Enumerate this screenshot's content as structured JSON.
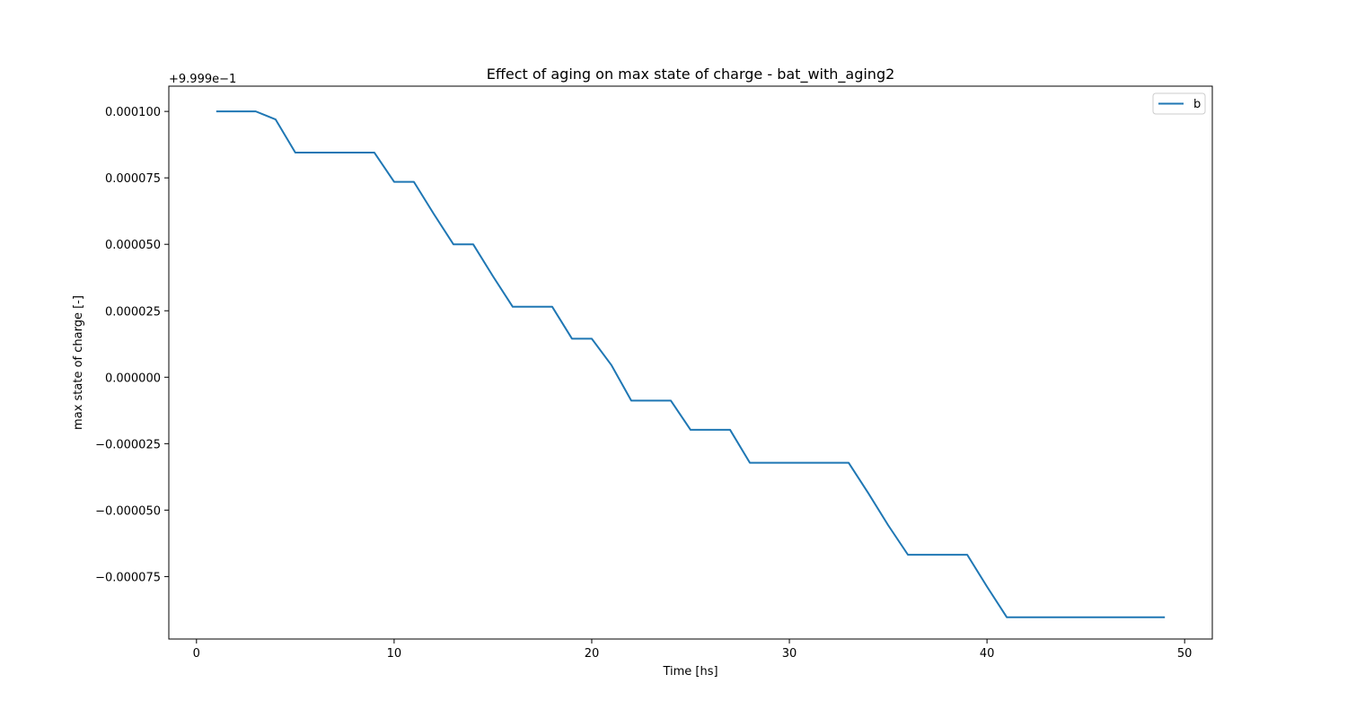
{
  "chart_data": {
    "type": "line",
    "title": "Effect of aging on max state of charge - bat_with_aging2",
    "xlabel": "Time [hs]",
    "ylabel": "max state of charge [-]",
    "offset_label": "+9.999e−1",
    "xlim": [
      -1.4,
      51.4
    ],
    "ylim": [
      -9.85e-05,
      0.0001095
    ],
    "x_ticks": [
      0,
      10,
      20,
      30,
      40,
      50
    ],
    "x_tick_labels": [
      "0",
      "10",
      "20",
      "30",
      "40",
      "50"
    ],
    "y_ticks": [
      0.0001,
      7.5e-05,
      5e-05,
      2.5e-05,
      0.0,
      -2.5e-05,
      -5e-05,
      -7.5e-05
    ],
    "y_tick_labels": [
      "0.000100",
      "0.000075",
      "0.000050",
      "0.000025",
      "0.000000",
      "−0.000025",
      "−0.000050",
      "−0.000075"
    ],
    "grid": false,
    "legend_position": "top-right",
    "series": [
      {
        "name": "b",
        "color": "#1f77b4",
        "x": [
          1,
          2,
          3,
          4,
          5,
          6,
          7,
          8,
          9,
          10,
          11,
          12,
          13,
          14,
          15,
          16,
          17,
          18,
          19,
          20,
          21,
          22,
          23,
          24,
          25,
          26,
          27,
          28,
          29,
          30,
          31,
          32,
          33,
          34,
          35,
          36,
          37,
          38,
          39,
          40,
          41,
          42,
          43,
          44,
          45,
          46,
          47,
          48,
          49
        ],
        "y": [
          0.0001,
          0.0001,
          0.0001,
          9.7e-05,
          8.45e-05,
          8.45e-05,
          8.45e-05,
          8.45e-05,
          8.45e-05,
          7.35e-05,
          7.35e-05,
          6.15e-05,
          5e-05,
          5e-05,
          3.8e-05,
          2.65e-05,
          2.65e-05,
          2.65e-05,
          1.45e-05,
          1.45e-05,
          4.5e-06,
          -8.8e-06,
          -8.8e-06,
          -8.8e-06,
          -1.98e-05,
          -1.98e-05,
          -1.98e-05,
          -3.22e-05,
          -3.22e-05,
          -3.22e-05,
          -3.22e-05,
          -3.22e-05,
          -3.22e-05,
          -4.37e-05,
          -5.57e-05,
          -6.68e-05,
          -6.68e-05,
          -6.68e-05,
          -6.68e-05,
          -7.88e-05,
          -9.03e-05,
          -9.03e-05,
          -9.03e-05,
          -9.03e-05,
          -9.03e-05,
          -9.03e-05,
          -9.03e-05,
          -9.03e-05,
          -9.03e-05
        ]
      }
    ]
  }
}
